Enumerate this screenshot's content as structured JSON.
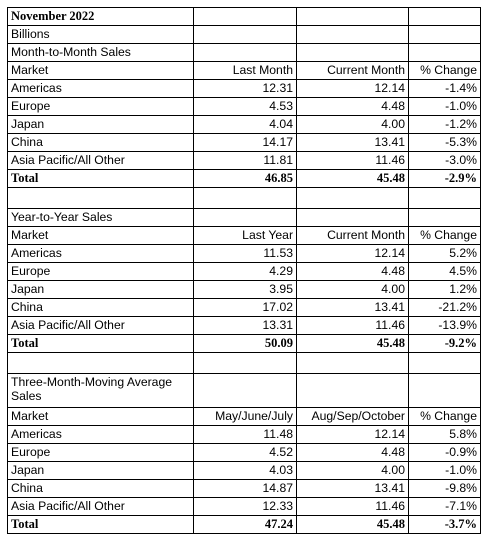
{
  "title": "November 2022",
  "unit": "Billions",
  "sections": [
    {
      "heading": "Month-to-Month Sales",
      "columns": [
        "Market",
        "Last Month",
        "Current Month",
        "% Change"
      ],
      "rows": [
        [
          "Americas",
          "12.31",
          "12.14",
          "-1.4%"
        ],
        [
          "Europe",
          "4.53",
          "4.48",
          "-1.0%"
        ],
        [
          "Japan",
          "4.04",
          "4.00",
          "-1.2%"
        ],
        [
          "China",
          "14.17",
          "13.41",
          "-5.3%"
        ],
        [
          "Asia Pacific/All Other",
          "11.81",
          "11.46",
          "-3.0%"
        ]
      ],
      "total": [
        "Total",
        "46.85",
        "45.48",
        "-2.9%"
      ]
    },
    {
      "heading": "Year-to-Year Sales",
      "columns": [
        "Market",
        "Last Year",
        "Current Month",
        "% Change"
      ],
      "rows": [
        [
          "Americas",
          "11.53",
          "12.14",
          "5.2%"
        ],
        [
          "Europe",
          "4.29",
          "4.48",
          "4.5%"
        ],
        [
          "Japan",
          "3.95",
          "4.00",
          "1.2%"
        ],
        [
          "China",
          "17.02",
          "13.41",
          "-21.2%"
        ],
        [
          "Asia Pacific/All Other",
          "13.31",
          "11.46",
          "-13.9%"
        ]
      ],
      "total": [
        "Total",
        "50.09",
        "45.48",
        "-9.2%"
      ]
    },
    {
      "heading": "Three-Month-Moving Average Sales",
      "columns": [
        "Market",
        "May/June/July",
        "Aug/Sep/October",
        "% Change"
      ],
      "rows": [
        [
          "Americas",
          "11.48",
          "12.14",
          "5.8%"
        ],
        [
          "Europe",
          "4.52",
          "4.48",
          "-0.9%"
        ],
        [
          "Japan",
          "4.03",
          "4.00",
          "-1.0%"
        ],
        [
          "China",
          "14.87",
          "13.41",
          "-9.8%"
        ],
        [
          "Asia Pacific/All Other",
          "12.33",
          "11.46",
          "-7.1%"
        ]
      ],
      "total": [
        "Total",
        "47.24",
        "45.48",
        "-3.7%"
      ]
    }
  ]
}
